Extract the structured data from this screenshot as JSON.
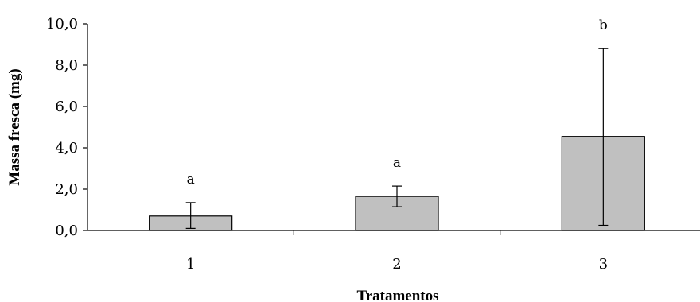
{
  "chart_data": {
    "type": "bar",
    "title": "",
    "xlabel": "Tratamentos",
    "ylabel": "Massa fresca (mg)",
    "categories": [
      "1",
      "2",
      "3"
    ],
    "values": [
      0.7,
      1.65,
      4.55
    ],
    "error_low": [
      0.1,
      1.15,
      0.25
    ],
    "error_high": [
      1.35,
      2.15,
      8.8
    ],
    "significance_labels": [
      "a",
      "a",
      "b"
    ],
    "ylim": [
      0,
      10
    ],
    "yticks": [
      "0,0",
      "2,0",
      "4,0",
      "6,0",
      "8,0",
      "10,0"
    ],
    "grid": false,
    "legend": "none",
    "bar_color": "#c0c0c0",
    "bar_edge_color": "#000000"
  }
}
